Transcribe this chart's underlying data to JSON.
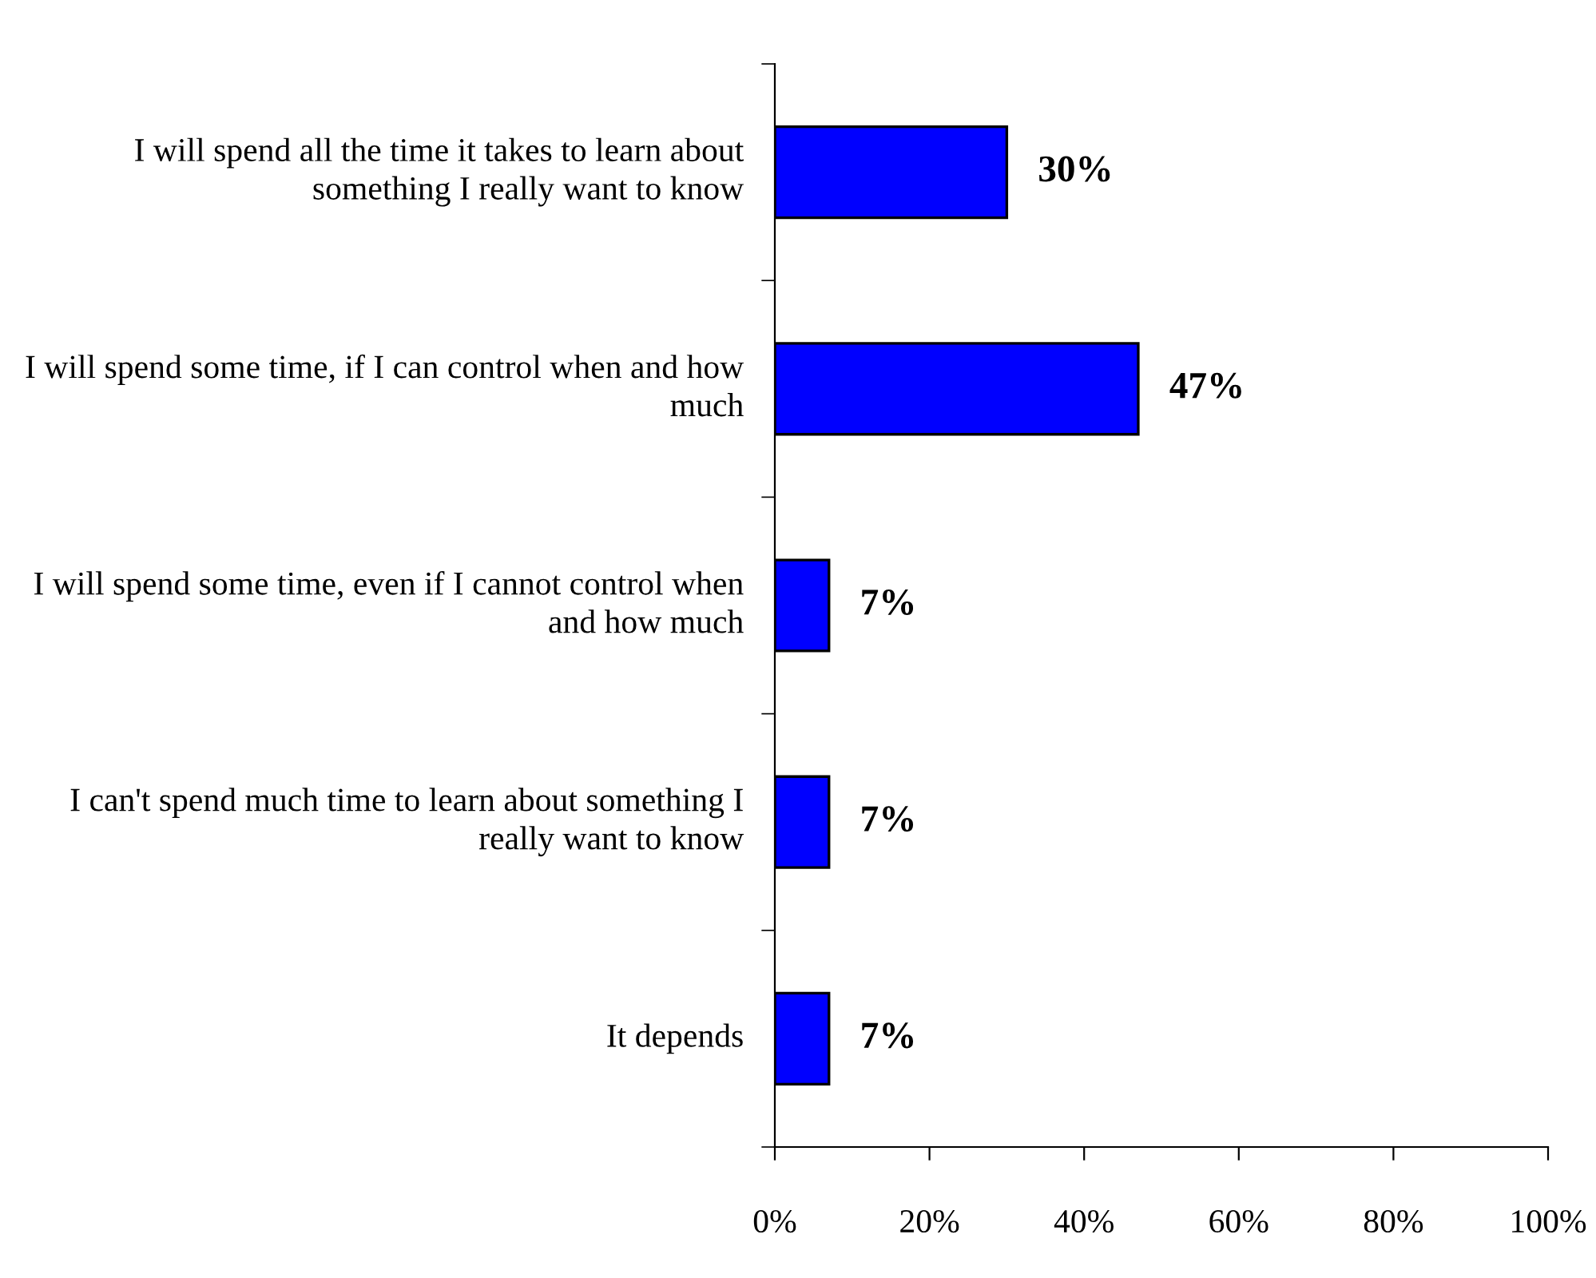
{
  "chart_data": {
    "type": "bar",
    "orientation": "horizontal",
    "categories": [
      "I will spend all the time it takes to learn about something I really want to know",
      "I will spend some time, if I can control when and how much",
      "I will spend some time, even if I cannot control when and how much",
      "I can't spend much time to learn about something I really want to know",
      "It depends"
    ],
    "values": [
      30,
      47,
      7,
      7,
      7
    ],
    "value_labels": [
      "30%",
      "47%",
      "7%",
      "7%",
      "7%"
    ],
    "color": "#0000ff",
    "xlim": [
      0,
      100
    ],
    "xticks": [
      {
        "value": 0,
        "label": "0%"
      },
      {
        "value": 20,
        "label": "20%"
      },
      {
        "value": 40,
        "label": "40%"
      },
      {
        "value": 60,
        "label": "60%"
      },
      {
        "value": 80,
        "label": "80%"
      },
      {
        "value": 100,
        "label": "100%"
      }
    ],
    "grid": false,
    "legend": false
  }
}
